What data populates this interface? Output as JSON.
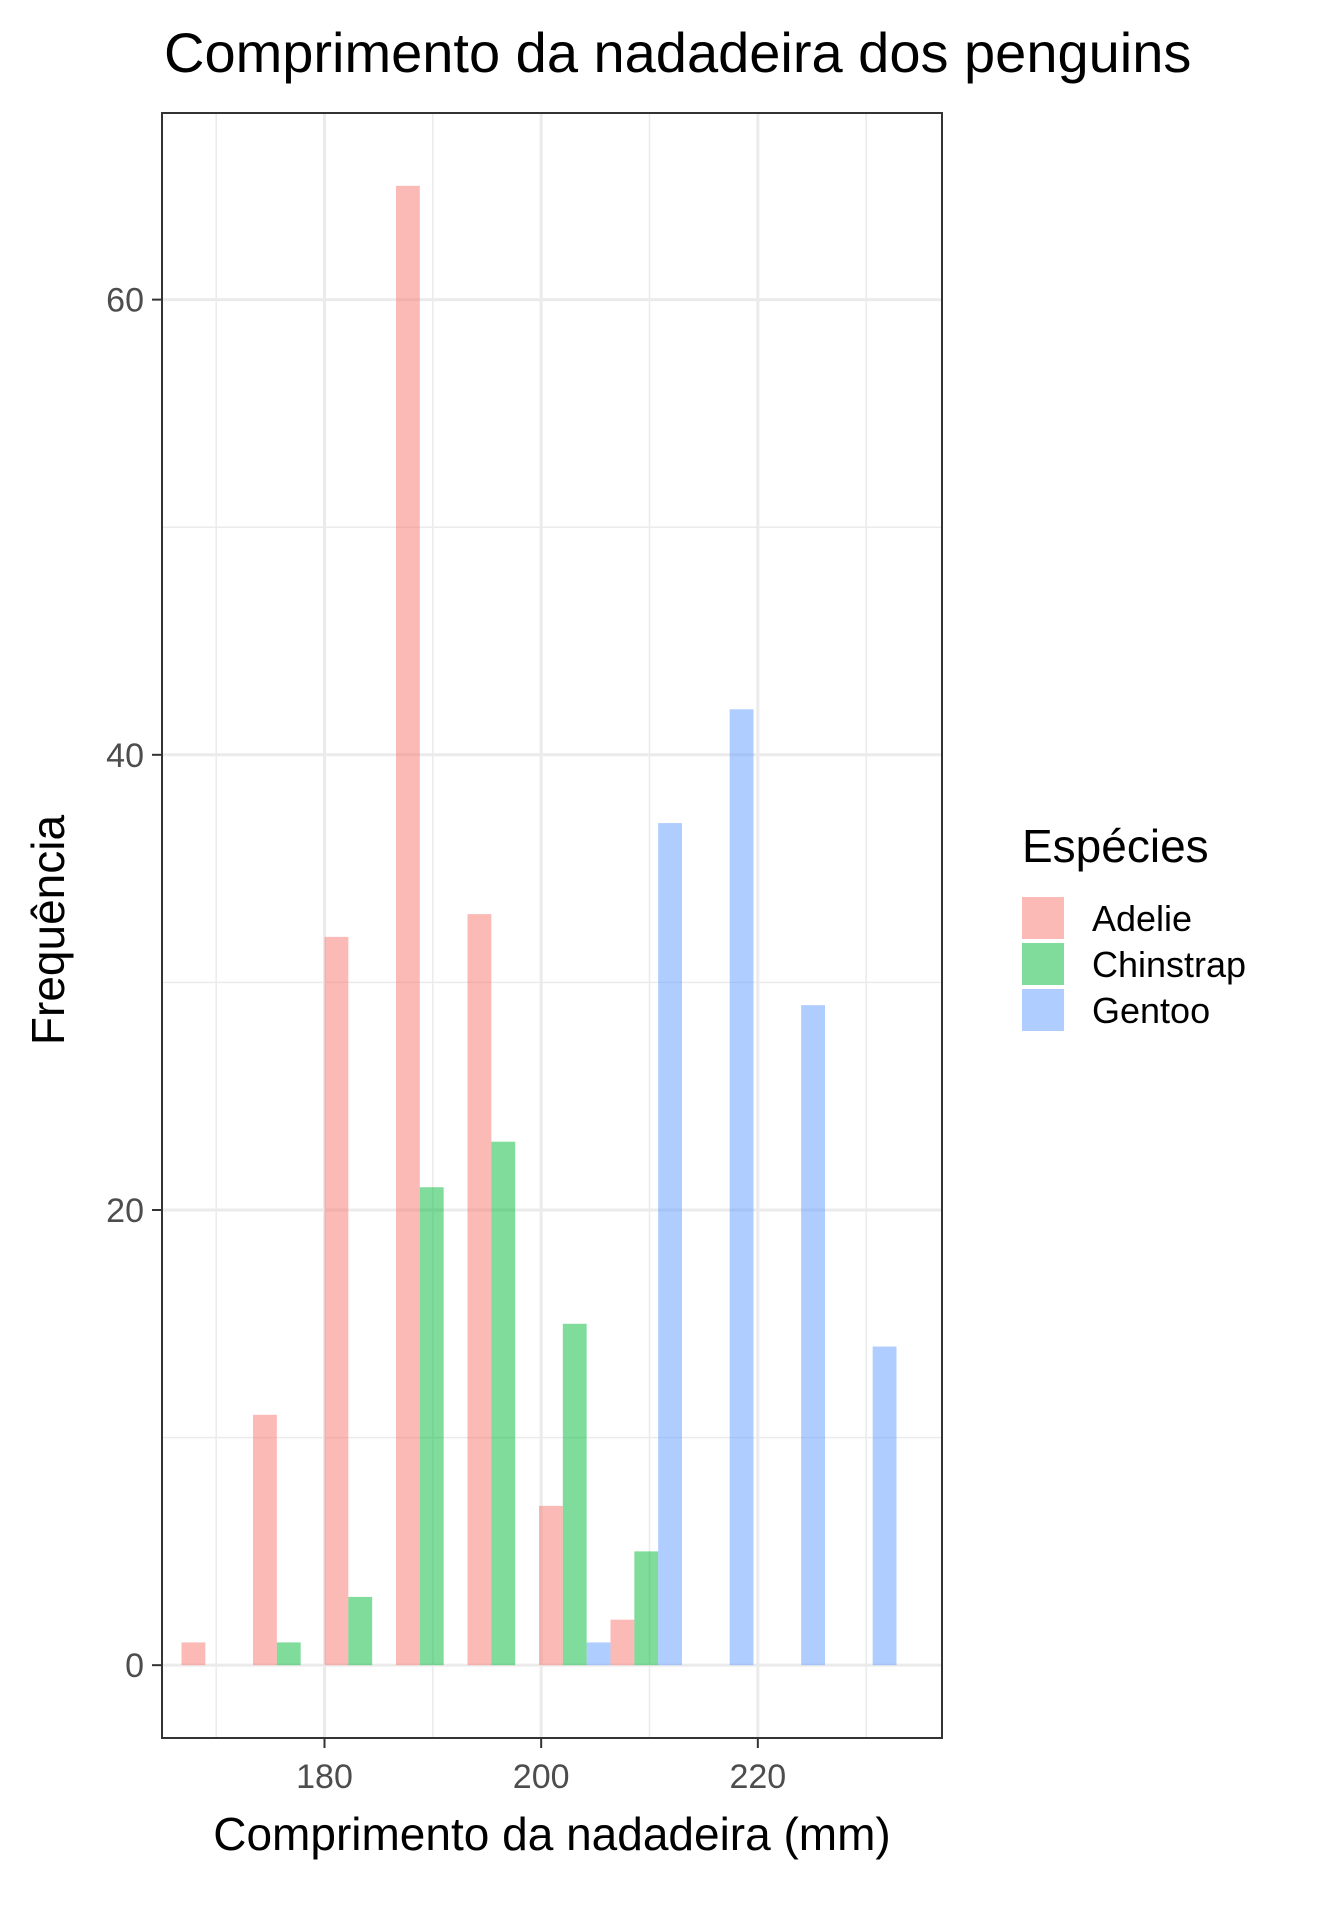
{
  "chart_data": {
    "type": "bar",
    "title": "Comprimento da nadadeira dos penguins",
    "xlabel": "Comprimento da nadadeira (mm)",
    "ylabel": "Frequência",
    "xlim": [
      165,
      237
    ],
    "ylim": [
      -3.2,
      68.2
    ],
    "x_ticks": [
      180,
      200,
      220
    ],
    "x_ticks_minor": [
      170,
      190,
      210,
      230
    ],
    "y_ticks": [
      0,
      20,
      40,
      60
    ],
    "y_ticks_minor": [
      10,
      30,
      50
    ],
    "bin_width": 6.6,
    "bin_centers": [
      170.1,
      176.7,
      183.3,
      189.9,
      196.5,
      203.1,
      209.7,
      216.3,
      222.9,
      229.5
    ],
    "grid": true,
    "legend_title": "Espécies",
    "legend_position": "right",
    "series": [
      {
        "name": "Adelie",
        "color": "#F8766D",
        "values": [
          1,
          11,
          32,
          65,
          33,
          7,
          2,
          0,
          0,
          0
        ]
      },
      {
        "name": "Chinstrap",
        "color": "#00BA38",
        "values": [
          0,
          1,
          3,
          21,
          23,
          15,
          5,
          0,
          0,
          0
        ]
      },
      {
        "name": "Gentoo",
        "color": "#619CFF",
        "values": [
          0,
          0,
          0,
          0,
          0,
          1,
          37,
          42,
          29,
          14
        ]
      }
    ]
  }
}
